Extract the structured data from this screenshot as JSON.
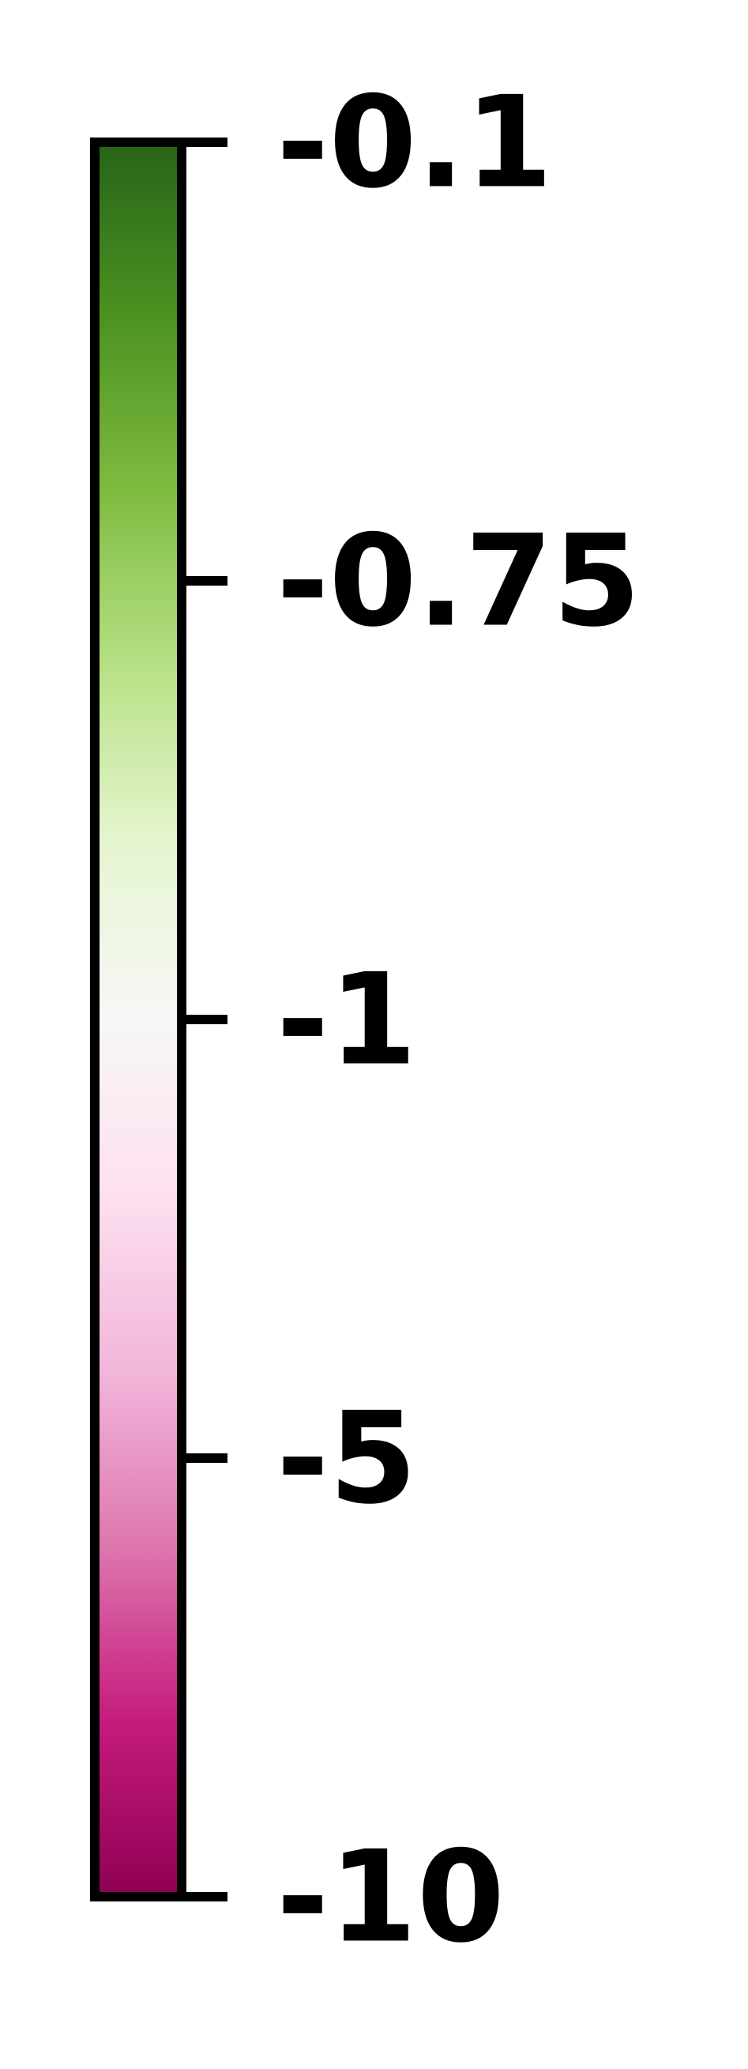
{
  "chart_data": {
    "type": "colorbar",
    "orientation": "vertical",
    "colormap": "PiYG",
    "ticks": [
      {
        "label": "-0.1"
      },
      {
        "label": "-0.75"
      },
      {
        "label": "-1"
      },
      {
        "label": "-5"
      },
      {
        "label": "-10"
      }
    ],
    "color_stops": [
      "#276419",
      "#4d9221",
      "#7fbc41",
      "#b8e186",
      "#e6f5d0",
      "#f7f7f7",
      "#fde0ef",
      "#f1b6da",
      "#de77ae",
      "#c51b7d",
      "#8e0152"
    ],
    "frame_color": "#000000",
    "background_color": "#ffffff"
  }
}
